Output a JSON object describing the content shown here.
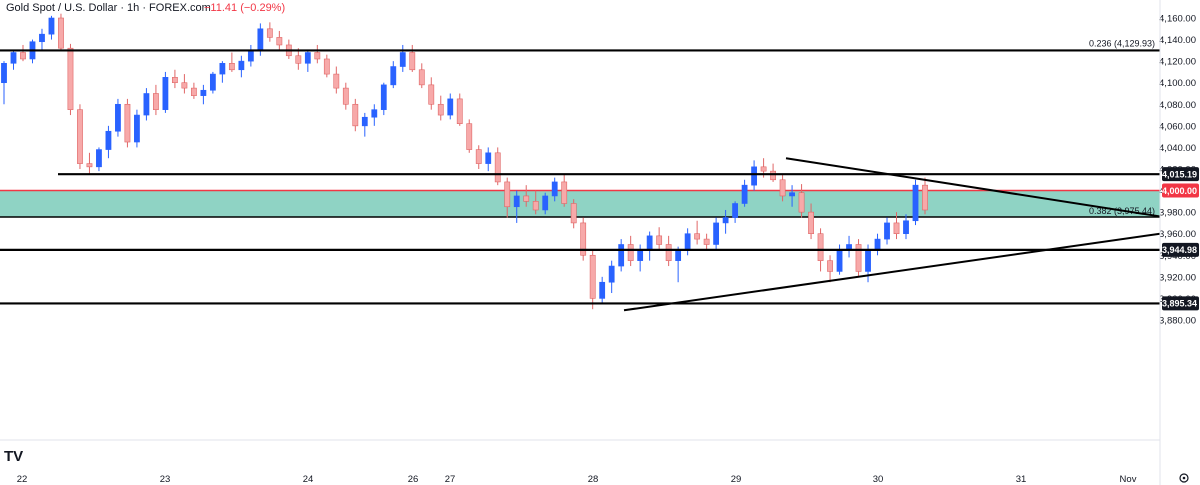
{
  "header": {
    "symbol_title": "Gold Spot / U.S. Dollar · 1h · FOREX.com",
    "change": "−11.41 (−0.29%)"
  },
  "logo": {
    "text": "TV"
  },
  "colors": {
    "bull": "#2962ff",
    "bear": "#f7a9a9",
    "bear_border": "#e06666",
    "zone_fill": "#8fd3c4",
    "zone_top_line": "#f23645",
    "line": "#000000",
    "badge_red": "#f23645",
    "badge_black": "#131722"
  },
  "chart_data": {
    "type": "candlestick",
    "title": "Gold Spot / U.S. Dollar · 1h · FOREX.com",
    "price_axis": {
      "range": [
        3874,
        4166
      ],
      "ticks": [
        "4,160.00",
        "4,140.00",
        "4,120.00",
        "4,100.00",
        "4,080.00",
        "4,060.00",
        "4,040.00",
        "4,020.00",
        "4,000.00",
        "3,980.00",
        "3,960.00",
        "3,940.00",
        "3,920.00",
        "3,900.00",
        "3,880.00"
      ]
    },
    "time_axis": {
      "labels": [
        "22",
        "23",
        "24",
        "26",
        "27",
        "28",
        "29",
        "30",
        "31",
        "Nov"
      ]
    },
    "horizontal_levels": [
      {
        "price": 4129.93,
        "label": "0.236 (4,129.93)",
        "badge": ""
      },
      {
        "price": 4015.19,
        "label": "",
        "badge": "4,015.19"
      },
      {
        "price": 3944.98,
        "label": "",
        "badge": "3,944.98"
      },
      {
        "price": 3895.34,
        "label": "",
        "badge": "3,895.34"
      }
    ],
    "zone": {
      "top": 4000.0,
      "bottom": 3975.44,
      "top_badge": "4,000.00",
      "bottom_label": "0.382 (3,975.44)"
    },
    "trendlines": [
      {
        "from": [
          786,
          4030
        ],
        "to": [
          1160,
          3976
        ]
      },
      {
        "from": [
          624,
          3889
        ],
        "to": [
          1160,
          3960
        ]
      }
    ],
    "candles": [
      [
        4100,
        4120,
        4080,
        4118
      ],
      [
        4118,
        4130,
        4112,
        4128
      ],
      [
        4128,
        4135,
        4120,
        4122
      ],
      [
        4122,
        4140,
        4118,
        4138
      ],
      [
        4138,
        4150,
        4130,
        4145
      ],
      [
        4145,
        4162,
        4140,
        4160
      ],
      [
        4160,
        4164,
        4130,
        4132
      ],
      [
        4132,
        4136,
        4070,
        4075
      ],
      [
        4075,
        4080,
        4020,
        4025
      ],
      [
        4025,
        4035,
        4015,
        4022
      ],
      [
        4022,
        4040,
        4018,
        4038
      ],
      [
        4038,
        4060,
        4030,
        4055
      ],
      [
        4055,
        4085,
        4050,
        4080
      ],
      [
        4080,
        4085,
        4040,
        4045
      ],
      [
        4045,
        4075,
        4040,
        4070
      ],
      [
        4070,
        4095,
        4065,
        4090
      ],
      [
        4090,
        4098,
        4070,
        4075
      ],
      [
        4075,
        4110,
        4072,
        4105
      ],
      [
        4105,
        4112,
        4095,
        4100
      ],
      [
        4100,
        4108,
        4090,
        4095
      ],
      [
        4095,
        4100,
        4085,
        4088
      ],
      [
        4088,
        4098,
        4080,
        4093
      ],
      [
        4093,
        4110,
        4090,
        4108
      ],
      [
        4108,
        4120,
        4100,
        4118
      ],
      [
        4118,
        4128,
        4110,
        4112
      ],
      [
        4112,
        4125,
        4105,
        4120
      ],
      [
        4120,
        4135,
        4115,
        4130
      ],
      [
        4130,
        4155,
        4125,
        4150
      ],
      [
        4150,
        4156,
        4138,
        4142
      ],
      [
        4142,
        4148,
        4130,
        4135
      ],
      [
        4135,
        4140,
        4122,
        4125
      ],
      [
        4125,
        4132,
        4112,
        4118
      ],
      [
        4118,
        4130,
        4110,
        4128
      ],
      [
        4128,
        4135,
        4118,
        4122
      ],
      [
        4122,
        4126,
        4105,
        4108
      ],
      [
        4108,
        4115,
        4090,
        4095
      ],
      [
        4095,
        4100,
        4075,
        4080
      ],
      [
        4080,
        4085,
        4055,
        4060
      ],
      [
        4060,
        4072,
        4050,
        4068
      ],
      [
        4068,
        4080,
        4060,
        4075
      ],
      [
        4075,
        4100,
        4070,
        4098
      ],
      [
        4098,
        4120,
        4095,
        4115
      ],
      [
        4115,
        4135,
        4110,
        4128
      ],
      [
        4128,
        4135,
        4110,
        4112
      ],
      [
        4112,
        4118,
        4095,
        4098
      ],
      [
        4098,
        4105,
        4075,
        4080
      ],
      [
        4080,
        4088,
        4065,
        4070
      ],
      [
        4070,
        4090,
        4066,
        4085
      ],
      [
        4085,
        4090,
        4060,
        4062
      ],
      [
        4062,
        4066,
        4035,
        4038
      ],
      [
        4038,
        4042,
        4020,
        4025
      ],
      [
        4025,
        4040,
        4018,
        4035
      ],
      [
        4035,
        4040,
        4005,
        4008
      ],
      [
        4008,
        4012,
        3975,
        3985
      ],
      [
        3985,
        4000,
        3970,
        3995
      ],
      [
        3995,
        4005,
        3985,
        3990
      ],
      [
        3990,
        4000,
        3978,
        3982
      ],
      [
        3982,
        3998,
        3978,
        3995
      ],
      [
        3995,
        4012,
        3990,
        4008
      ],
      [
        4008,
        4015,
        3985,
        3988
      ],
      [
        3988,
        3992,
        3965,
        3970
      ],
      [
        3970,
        3975,
        3935,
        3940
      ],
      [
        3940,
        3944,
        3890,
        3900
      ],
      [
        3900,
        3920,
        3895,
        3915
      ],
      [
        3915,
        3935,
        3905,
        3930
      ],
      [
        3930,
        3955,
        3925,
        3950
      ],
      [
        3950,
        3958,
        3930,
        3935
      ],
      [
        3935,
        3950,
        3925,
        3945
      ],
      [
        3945,
        3962,
        3935,
        3958
      ],
      [
        3958,
        3966,
        3945,
        3950
      ],
      [
        3950,
        3958,
        3930,
        3935
      ],
      [
        3935,
        3948,
        3915,
        3945
      ],
      [
        3945,
        3965,
        3940,
        3960
      ],
      [
        3960,
        3972,
        3950,
        3955
      ],
      [
        3955,
        3960,
        3945,
        3950
      ],
      [
        3950,
        3975,
        3945,
        3970
      ],
      [
        3970,
        3982,
        3960,
        3975
      ],
      [
        3975,
        3990,
        3970,
        3988
      ],
      [
        3988,
        4010,
        3985,
        4005
      ],
      [
        4005,
        4028,
        4000,
        4022
      ],
      [
        4022,
        4030,
        4012,
        4018
      ],
      [
        4018,
        4025,
        4008,
        4010
      ],
      [
        4010,
        4015,
        3990,
        3995
      ],
      [
        3995,
        4005,
        3985,
        3998
      ],
      [
        3998,
        4006,
        3975,
        3980
      ],
      [
        3980,
        3988,
        3955,
        3960
      ],
      [
        3960,
        3965,
        3925,
        3935
      ],
      [
        3935,
        3940,
        3915,
        3925
      ],
      [
        3925,
        3950,
        3922,
        3945
      ],
      [
        3945,
        3958,
        3938,
        3950
      ],
      [
        3950,
        3955,
        3920,
        3925
      ],
      [
        3925,
        3950,
        3915,
        3945
      ],
      [
        3945,
        3960,
        3940,
        3955
      ],
      [
        3955,
        3975,
        3950,
        3970
      ],
      [
        3970,
        3980,
        3955,
        3960
      ],
      [
        3960,
        3978,
        3955,
        3972
      ],
      [
        3972,
        4010,
        3968,
        4005
      ],
      [
        4005,
        4012,
        3978,
        3982
      ]
    ]
  }
}
